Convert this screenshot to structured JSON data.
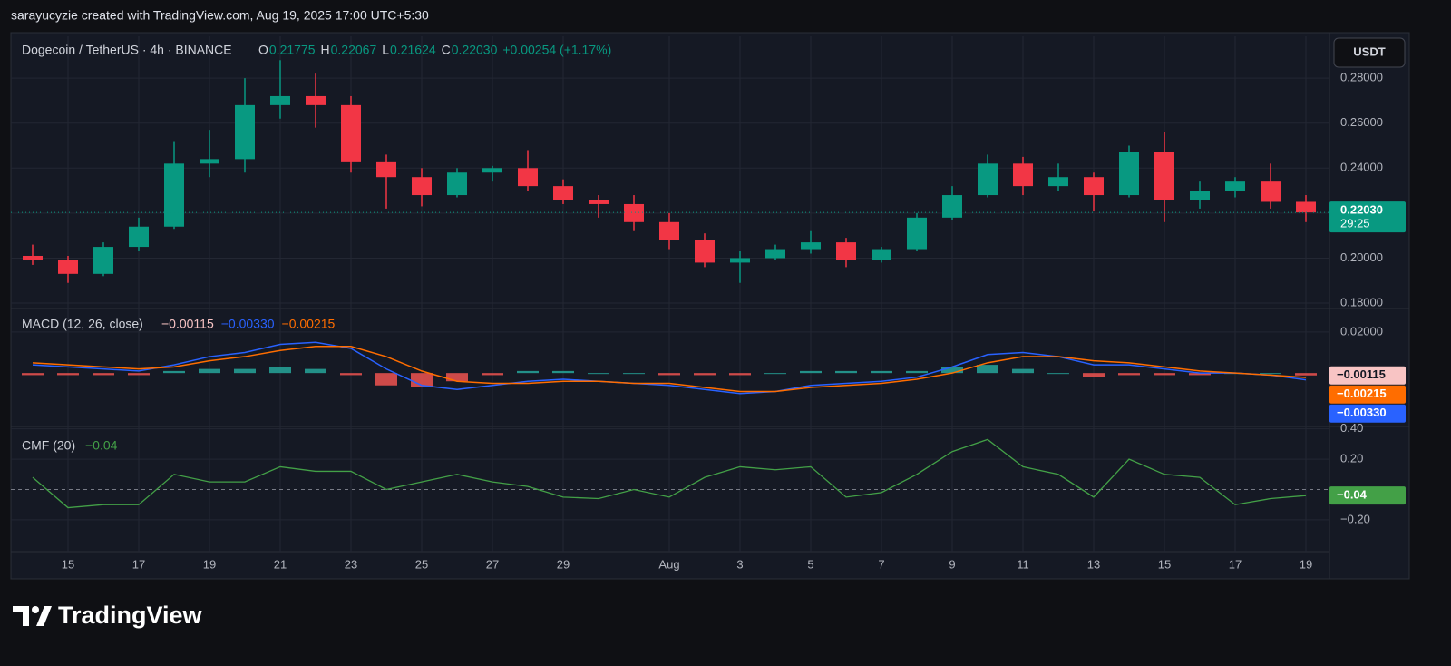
{
  "header": "sarayucyzie created with TradingView.com, Aug 19, 2025 17:00 UTC+5:30",
  "footer": "TradingView",
  "chart_data": [
    {
      "type": "candlestick",
      "title": "Dogecoin / TetherUS · 4h · BINANCE",
      "legend": [
        [
          "O",
          "0.21775"
        ],
        [
          "H",
          "0.22067"
        ],
        [
          "L",
          "0.21624"
        ],
        [
          "C",
          "0.22030"
        ]
      ],
      "change": "+0.00254 (+1.17%)",
      "currency": "USDT",
      "last_value_label": "0.22030",
      "countdown": "29:25",
      "up_color": "#089981",
      "down_color": "#f23645",
      "categories": [
        null,
        "15",
        null,
        "17",
        null,
        "19",
        null,
        "21",
        null,
        "23",
        null,
        "25",
        null,
        "27",
        null,
        "29",
        null,
        null,
        "Aug",
        null,
        "3",
        null,
        "5",
        null,
        "7",
        null,
        "9",
        null,
        "11",
        null,
        "13",
        null,
        "15",
        null,
        "17",
        null,
        "19"
      ],
      "open": [
        0.201,
        0.199,
        0.193,
        0.205,
        0.214,
        0.242,
        0.244,
        0.268,
        0.272,
        0.268,
        0.243,
        0.236,
        0.228,
        0.238,
        0.24,
        0.232,
        0.226,
        0.224,
        0.216,
        0.208,
        0.198,
        0.2,
        0.204,
        0.207,
        0.199,
        0.204,
        0.218,
        0.228,
        0.242,
        0.232,
        0.236,
        0.228,
        0.247,
        0.226,
        0.23,
        0.234,
        0.225
      ],
      "high": [
        0.206,
        0.201,
        0.207,
        0.218,
        0.252,
        0.257,
        0.28,
        0.288,
        0.282,
        0.272,
        0.246,
        0.24,
        0.24,
        0.241,
        0.248,
        0.235,
        0.228,
        0.228,
        0.22,
        0.211,
        0.203,
        0.206,
        0.212,
        0.209,
        0.205,
        0.22,
        0.232,
        0.246,
        0.245,
        0.242,
        0.238,
        0.25,
        0.256,
        0.234,
        0.236,
        0.242,
        0.228
      ],
      "low": [
        0.197,
        0.189,
        0.192,
        0.203,
        0.213,
        0.236,
        0.238,
        0.262,
        0.258,
        0.238,
        0.222,
        0.223,
        0.227,
        0.234,
        0.23,
        0.224,
        0.218,
        0.212,
        0.204,
        0.196,
        0.189,
        0.199,
        0.202,
        0.196,
        0.198,
        0.203,
        0.217,
        0.227,
        0.228,
        0.23,
        0.221,
        0.227,
        0.216,
        0.222,
        0.227,
        0.222,
        0.216
      ],
      "close": [
        0.199,
        0.193,
        0.205,
        0.214,
        0.242,
        0.244,
        0.268,
        0.272,
        0.268,
        0.243,
        0.236,
        0.228,
        0.238,
        0.24,
        0.232,
        0.226,
        0.224,
        0.216,
        0.208,
        0.198,
        0.2,
        0.204,
        0.207,
        0.199,
        0.204,
        0.218,
        0.228,
        0.242,
        0.232,
        0.236,
        0.228,
        0.247,
        0.226,
        0.23,
        0.234,
        0.225,
        0.2203
      ],
      "ylim": [
        0.1776,
        0.2986
      ],
      "yticks": [
        {
          "value": 0.18,
          "label": "0.18000"
        },
        {
          "value": 0.2,
          "label": "0.20000"
        },
        {
          "value": 0.22,
          "label": "0.22000"
        },
        {
          "value": 0.24,
          "label": "0.24000"
        },
        {
          "value": 0.26,
          "label": "0.26000"
        },
        {
          "value": 0.28,
          "label": "0.28000"
        }
      ],
      "grid": true
    },
    {
      "type": "macd",
      "title": "MACD (12, 26, close)",
      "histogram": {
        "color_up": "#26a69a",
        "color_down": "#ef5350",
        "label_color": "#f8c4c4",
        "values": [
          -0.001,
          -0.001,
          -0.001,
          -0.001,
          0.001,
          0.002,
          0.002,
          0.003,
          0.002,
          -0.001,
          -0.006,
          -0.007,
          -0.004,
          -0.001,
          0.001,
          0.001,
          0,
          0,
          -0.001,
          -0.001,
          -0.001,
          0,
          0.001,
          0.001,
          0.001,
          0.001,
          0.003,
          0.004,
          0.002,
          0,
          -0.002,
          -0.001,
          -0.001,
          -0.001,
          0,
          0,
          -0.00115
        ],
        "last_value_label": "−0.00115"
      },
      "series": [
        {
          "name": "MACD",
          "color": "#2962ff",
          "last_value_label": "−0.00330",
          "values": [
            0.004,
            0.003,
            0.002,
            0.001,
            0.004,
            0.008,
            0.01,
            0.014,
            0.015,
            0.012,
            0.002,
            -0.006,
            -0.008,
            -0.006,
            -0.004,
            -0.003,
            -0.004,
            -0.005,
            -0.006,
            -0.008,
            -0.01,
            -0.009,
            -0.006,
            -0.005,
            -0.004,
            -0.002,
            0.003,
            0.009,
            0.01,
            0.008,
            0.004,
            0.004,
            0.002,
            0.0,
            0.0,
            -0.001,
            -0.0033
          ]
        },
        {
          "name": "Signal",
          "color": "#ff6d00",
          "last_value_label": "−0.00215",
          "values": [
            0.005,
            0.004,
            0.003,
            0.002,
            0.003,
            0.006,
            0.008,
            0.011,
            0.013,
            0.013,
            0.008,
            0.001,
            -0.004,
            -0.005,
            -0.005,
            -0.004,
            -0.004,
            -0.005,
            -0.005,
            -0.007,
            -0.009,
            -0.009,
            -0.007,
            -0.006,
            -0.005,
            -0.003,
            0.0,
            0.005,
            0.008,
            0.008,
            0.006,
            0.005,
            0.003,
            0.001,
            0.0,
            -0.001,
            -0.00215
          ]
        }
      ],
      "ylim": [
        -0.026,
        0.031
      ],
      "yticks": [
        {
          "value": 0.02,
          "label": "0.02000"
        }
      ]
    },
    {
      "type": "line",
      "title": "CMF (20)",
      "color": "#43a047",
      "last_value_label": "−0.04",
      "values": [
        0.08,
        -0.12,
        -0.1,
        -0.1,
        0.1,
        0.05,
        0.05,
        0.15,
        0.12,
        0.12,
        0.0,
        0.05,
        0.1,
        0.05,
        0.02,
        -0.05,
        -0.06,
        0.0,
        -0.05,
        0.08,
        0.15,
        0.13,
        0.15,
        -0.05,
        -0.02,
        0.1,
        0.25,
        0.33,
        0.15,
        0.1,
        -0.05,
        0.2,
        0.1,
        0.08,
        -0.1,
        -0.06,
        -0.04
      ],
      "ylim": [
        -0.41,
        0.41
      ],
      "yticks": [
        {
          "value": 0.4,
          "label": "0.40"
        },
        {
          "value": 0.2,
          "label": "0.20"
        },
        {
          "value": -0.2,
          "label": "−0.20"
        }
      ]
    }
  ]
}
